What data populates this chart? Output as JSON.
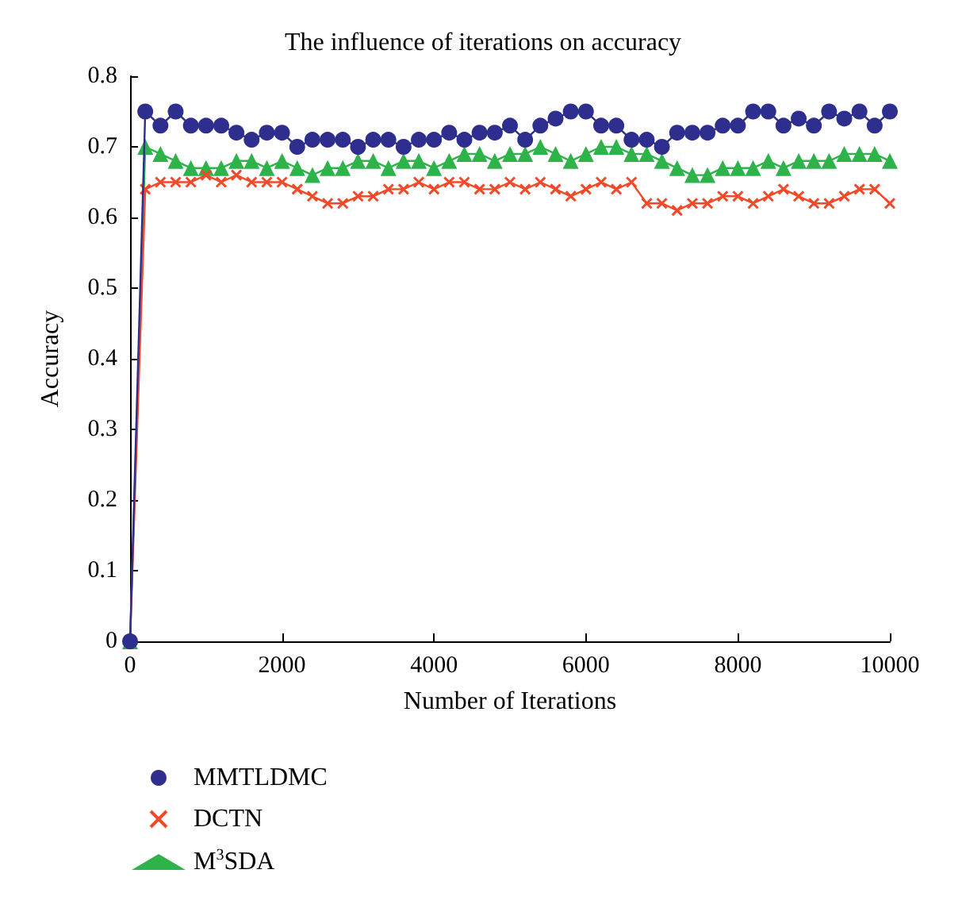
{
  "chart_data": {
    "type": "line",
    "title": "The influence of iterations on accuracy",
    "xlabel": "Number of Iterations",
    "ylabel": "Accuracy",
    "x": [
      0,
      200,
      400,
      600,
      800,
      1000,
      1200,
      1400,
      1600,
      1800,
      2000,
      2200,
      2400,
      2600,
      2800,
      3000,
      3200,
      3400,
      3600,
      3800,
      4000,
      4200,
      4400,
      4600,
      4800,
      5000,
      5200,
      5400,
      5600,
      5800,
      6000,
      6200,
      6400,
      6600,
      6800,
      7000,
      7200,
      7400,
      7600,
      7800,
      8000,
      8200,
      8400,
      8600,
      8800,
      9000,
      9200,
      9400,
      9600,
      9800,
      10000
    ],
    "series": [
      {
        "name": "MMTLDMC",
        "color": "#2e2e8f",
        "marker": "circle",
        "values": [
          0,
          0.75,
          0.73,
          0.75,
          0.73,
          0.73,
          0.73,
          0.72,
          0.71,
          0.72,
          0.72,
          0.7,
          0.71,
          0.71,
          0.71,
          0.7,
          0.71,
          0.71,
          0.7,
          0.71,
          0.71,
          0.72,
          0.71,
          0.72,
          0.72,
          0.73,
          0.71,
          0.73,
          0.74,
          0.75,
          0.75,
          0.73,
          0.73,
          0.71,
          0.71,
          0.7,
          0.72,
          0.72,
          0.72,
          0.73,
          0.73,
          0.75,
          0.75,
          0.73,
          0.74,
          0.73,
          0.75,
          0.74,
          0.75,
          0.73,
          0.75
        ]
      },
      {
        "name": "DCTN",
        "color": "#f04a2a",
        "marker": "cross",
        "values": [
          0,
          0.64,
          0.65,
          0.65,
          0.65,
          0.66,
          0.65,
          0.66,
          0.65,
          0.65,
          0.65,
          0.64,
          0.63,
          0.62,
          0.62,
          0.63,
          0.63,
          0.64,
          0.64,
          0.65,
          0.64,
          0.65,
          0.65,
          0.64,
          0.64,
          0.65,
          0.64,
          0.65,
          0.64,
          0.63,
          0.64,
          0.65,
          0.64,
          0.65,
          0.62,
          0.62,
          0.61,
          0.62,
          0.62,
          0.63,
          0.63,
          0.62,
          0.63,
          0.64,
          0.63,
          0.62,
          0.62,
          0.63,
          0.64,
          0.64,
          0.62
        ]
      },
      {
        "name": "M$^{3}$SDA",
        "color": "#2db34a",
        "marker": "triangle",
        "values": [
          0,
          0.7,
          0.69,
          0.68,
          0.67,
          0.67,
          0.67,
          0.68,
          0.68,
          0.67,
          0.68,
          0.67,
          0.66,
          0.67,
          0.67,
          0.68,
          0.68,
          0.67,
          0.68,
          0.68,
          0.67,
          0.68,
          0.69,
          0.69,
          0.68,
          0.69,
          0.69,
          0.7,
          0.69,
          0.68,
          0.69,
          0.7,
          0.7,
          0.69,
          0.69,
          0.68,
          0.67,
          0.66,
          0.66,
          0.67,
          0.67,
          0.67,
          0.68,
          0.67,
          0.68,
          0.68,
          0.68,
          0.69,
          0.69,
          0.69,
          0.68
        ]
      }
    ],
    "xlim": [
      0,
      10000
    ],
    "xticks": [
      0,
      2000,
      4000,
      6000,
      8000,
      10000
    ],
    "ylim": [
      0,
      0.8
    ],
    "yticks": [
      0,
      0.1,
      0.2,
      0.3,
      0.4,
      0.5,
      0.6,
      0.7,
      0.8
    ],
    "grid": false,
    "legend": "bottom left"
  }
}
